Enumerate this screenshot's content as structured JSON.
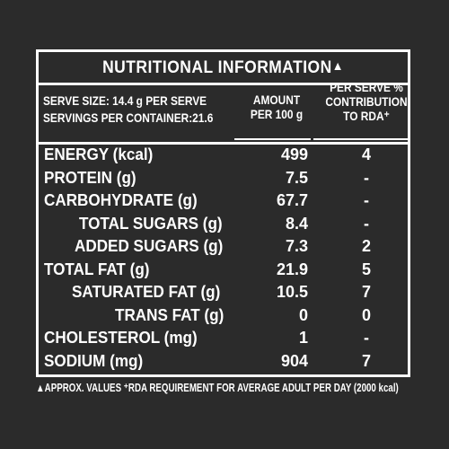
{
  "label": {
    "title": "NUTRITIONAL INFORMATION",
    "title_mark": "▲",
    "serve_size": "SERVE SIZE: 14.4 g PER SERVE",
    "servings_per_container": "SERVINGS PER CONTAINER:21.6",
    "col_amount_line1": "AMOUNT",
    "col_amount_line2": "PER 100 g",
    "col_rda_line1": "PER SERVE %",
    "col_rda_line2": "CONTRIBUTION",
    "col_rda_line3": "TO RDA⁺",
    "rows": [
      {
        "name": "ENERGY (kcal)",
        "amount": "499",
        "rda": "4",
        "indent": 0
      },
      {
        "name": "PROTEIN (g)",
        "amount": "7.5",
        "rda": "-",
        "indent": 0
      },
      {
        "name": "CARBOHYDRATE (g)",
        "amount": "67.7",
        "rda": "-",
        "indent": 0
      },
      {
        "name": "TOTAL SUGARS (g)",
        "amount": "8.4",
        "rda": "-",
        "indent": 1
      },
      {
        "name": "ADDED SUGARS (g)",
        "amount": "7.3",
        "rda": "2",
        "indent": 1
      },
      {
        "name": "TOTAL FAT (g)",
        "amount": "21.9",
        "rda": "5",
        "indent": 0
      },
      {
        "name": "SATURATED FAT (g)",
        "amount": "10.5",
        "rda": "7",
        "indent": 1
      },
      {
        "name": "TRANS FAT (g)",
        "amount": "0",
        "rda": "0",
        "indent": 2
      },
      {
        "name": "CHOLESTEROL (mg)",
        "amount": "1",
        "rda": "-",
        "indent": 0
      },
      {
        "name": "SODIUM (mg)",
        "amount": "904",
        "rda": "7",
        "indent": 0
      }
    ],
    "footnote": "▲APPROX. VALUES ⁺RDA REQUIREMENT FOR AVERAGE ADULT PER DAY (2000 kcal)"
  },
  "colors": {
    "background": "#2b2b2b",
    "text": "#ffffff"
  }
}
